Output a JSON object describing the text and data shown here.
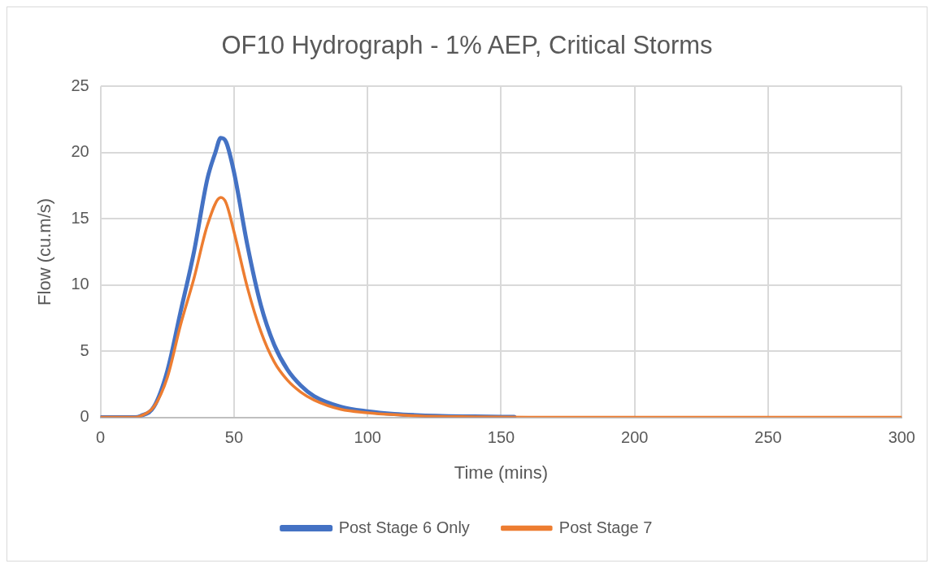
{
  "chart_data": {
    "type": "line",
    "title": "OF10 Hydrograph - 1% AEP, Critical Storms",
    "xlabel": "Time (mins)",
    "ylabel": "Flow (cu.m/s)",
    "xlim": [
      0,
      300
    ],
    "xticks": [
      0,
      50,
      100,
      150,
      200,
      250,
      300
    ],
    "ylim": [
      0,
      25
    ],
    "yticks": [
      0,
      5,
      10,
      15,
      20,
      25
    ],
    "grid": true,
    "legend": "bottom",
    "marker": "none",
    "series": [
      {
        "name": "Post Stage 6 Only",
        "color": "#4472c4",
        "x": [
          0,
          13,
          15,
          20,
          25,
          30,
          35,
          40,
          43,
          45,
          47,
          50,
          55,
          60,
          65,
          70,
          75,
          80,
          90,
          100,
          110,
          120,
          140,
          155
        ],
        "values": [
          0,
          0,
          0.1,
          0.8,
          3.5,
          8,
          12.5,
          18,
          20,
          21.1,
          20.8,
          18.5,
          13,
          8.5,
          5.5,
          3.6,
          2.4,
          1.6,
          0.8,
          0.45,
          0.25,
          0.15,
          0.06,
          0.03
        ]
      },
      {
        "name": "Post Stage 7",
        "color": "#ed7d31",
        "x": [
          0,
          13,
          15,
          20,
          25,
          30,
          35,
          40,
          45,
          47,
          50,
          55,
          60,
          65,
          70,
          75,
          80,
          90,
          100,
          110,
          120,
          140,
          160,
          200,
          300
        ],
        "values": [
          0,
          0,
          0.1,
          0.8,
          3,
          7,
          10.5,
          14.5,
          16.6,
          16.2,
          14,
          9.8,
          6.5,
          4.2,
          2.8,
          1.9,
          1.3,
          0.6,
          0.35,
          0.2,
          0.1,
          0.04,
          0.01,
          0,
          0
        ]
      }
    ]
  }
}
